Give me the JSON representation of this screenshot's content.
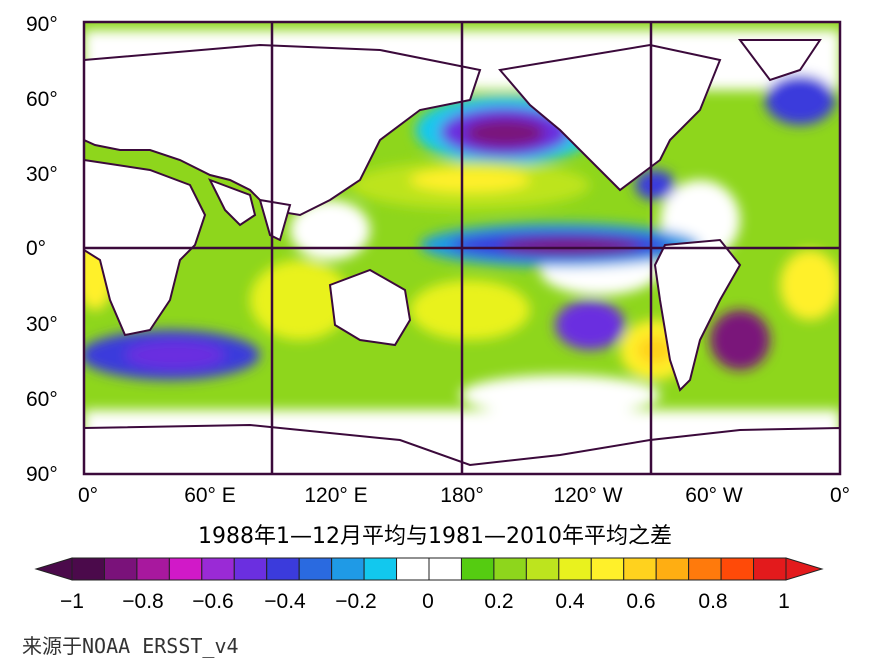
{
  "map": {
    "lat_labels": [
      "90°",
      "60°",
      "30°",
      "0°",
      "30°",
      "60°",
      "90°"
    ],
    "lon_labels": [
      "0°",
      "60° E",
      "120° E",
      "180°",
      "120° W",
      "60° W",
      "0°"
    ],
    "grid_lines": {
      "meridians_deg": [
        90,
        180,
        270
      ],
      "equator": true
    }
  },
  "subtitle": "1988年1—12月平均与1981—2010年平均之差",
  "colorbar": {
    "tick_labels": [
      "−1",
      "−0.8",
      "−0.6",
      "−0.4",
      "−0.2",
      "0",
      "0.2",
      "0.4",
      "0.6",
      "0.8",
      "1"
    ],
    "colors": [
      "#4b0a4b",
      "#7a127a",
      "#a8189e",
      "#d119c8",
      "#9a2ad6",
      "#6b2fe0",
      "#3b3bdc",
      "#2a6ae0",
      "#1f9ae6",
      "#12c8ee",
      "#ffffff",
      "#ffffff",
      "#55cc11",
      "#8ed61c",
      "#bde41e",
      "#e9f21e",
      "#fff02a",
      "#ffd21e",
      "#ffae12",
      "#ff7a0c",
      "#ff4a08",
      "#e31a1c"
    ],
    "range": [
      -1,
      1
    ]
  },
  "source": "来源于NOAA ERSST_v4",
  "anomaly_regions": [
    {
      "name": "central-north-pacific-cold",
      "value": -0.9
    },
    {
      "name": "equatorial-pacific-cold",
      "value": -0.7
    },
    {
      "name": "south-indian-cold",
      "value": -0.5
    },
    {
      "name": "north-pacific-warm-band",
      "value": 0.4
    },
    {
      "name": "south-pacific-warm",
      "value": 0.5
    },
    {
      "name": "southeast-pacific-warm",
      "value": 0.6
    },
    {
      "name": "north-atlantic-cold",
      "value": -0.4
    },
    {
      "name": "south-atlantic-cold",
      "value": -0.6
    }
  ]
}
